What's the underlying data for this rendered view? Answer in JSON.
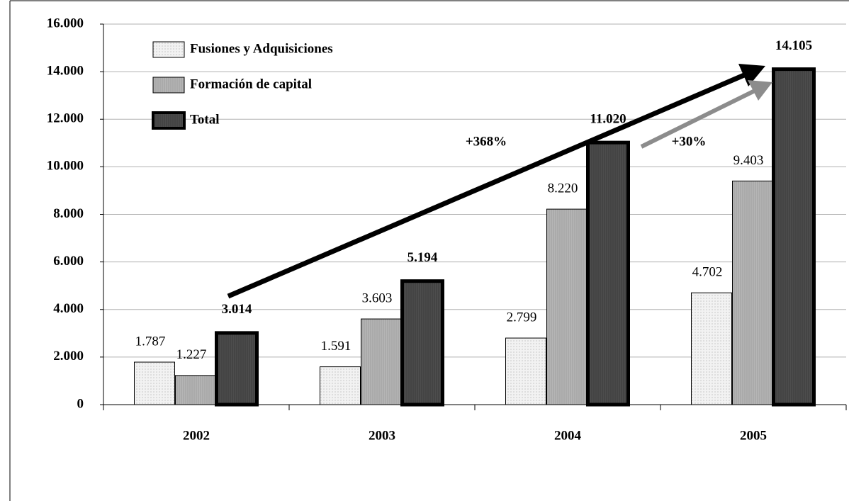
{
  "chart_data": {
    "type": "bar",
    "categories": [
      "2002",
      "2003",
      "2004",
      "2005"
    ],
    "series": [
      {
        "name": "Fusiones y Adquisiciones",
        "color": "#f2f2f2",
        "values": [
          1787,
          1591,
          2799,
          4702
        ],
        "value_labels": [
          "1.787",
          "1.591",
          "2.799",
          "4.702"
        ]
      },
      {
        "name": "Formación de capital",
        "color": "#b5b5b5",
        "values": [
          1227,
          3603,
          8220,
          9403
        ],
        "value_labels": [
          "1.227",
          "3.603",
          "8.220",
          "9.403"
        ]
      },
      {
        "name": "Total",
        "color": "#4d4d4d",
        "values": [
          3014,
          5194,
          11020,
          14105
        ],
        "value_labels": [
          "3.014",
          "5.194",
          "11.020",
          "14.105"
        ]
      }
    ],
    "ylim": [
      0,
      16000
    ],
    "yticks": [
      0,
      {
        "value": 2000,
        "label": "2.000"
      },
      {
        "value": 4000,
        "label": "4.000"
      },
      {
        "value": 6000,
        "label": "6.000"
      },
      {
        "value": 8000,
        "label": "8.000"
      },
      {
        "value": 10000,
        "label": "10.000"
      },
      {
        "value": 12000,
        "label": "12.000"
      },
      {
        "value": 14000,
        "label": "14.000"
      },
      {
        "value": 16000,
        "label": "16.000"
      }
    ],
    "grid": true,
    "legend": "top-left",
    "annotations": [
      {
        "text": "+368%",
        "color": "#000000"
      },
      {
        "text": "+30%",
        "color": "#8c8c8c"
      }
    ]
  }
}
